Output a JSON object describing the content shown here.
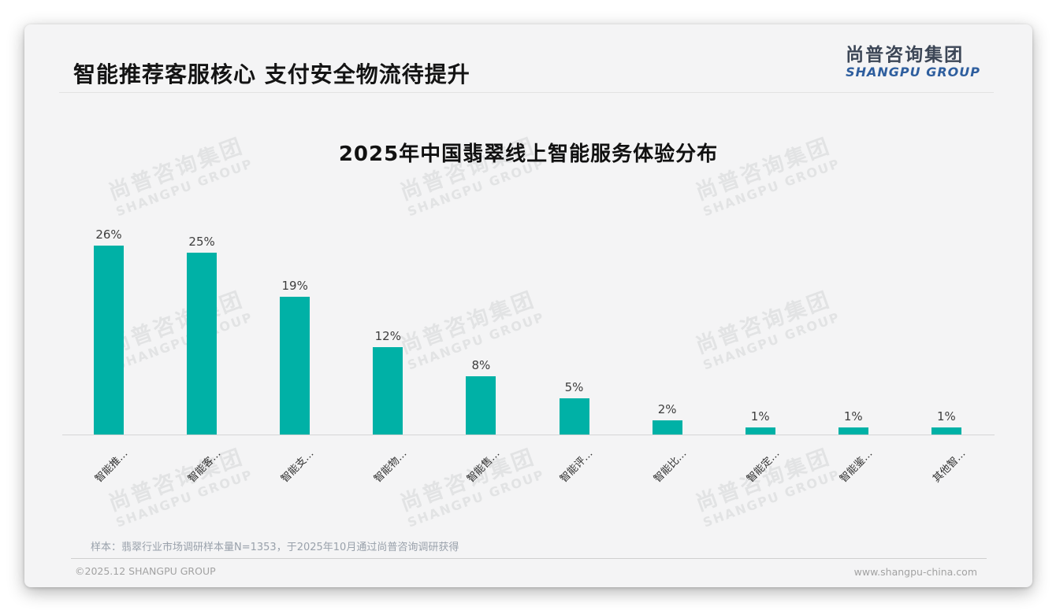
{
  "slide": {
    "title": "智能推荐客服核心 支付安全物流待提升",
    "logo": {
      "cn": "尚普咨询集团",
      "en": "SHANGPU GROUP",
      "cn_color": "#3c4656",
      "en_color": "#2e5e9e"
    },
    "watermark": {
      "cn": "尚普咨询集团",
      "en": "SHANGPU GROUP"
    },
    "footnote": "样本：翡翠行业市场调研样本量N=1353，于2025年10月通过尚普咨询调研获得",
    "footer": {
      "left": "©2025.12 SHANGPU GROUP",
      "right": "www.shangpu-china.com"
    }
  },
  "chart_data": {
    "type": "bar",
    "title": "2025年中国翡翠线上智能服务体验分布",
    "categories": [
      "智能推…",
      "智能客…",
      "智能支…",
      "智能物…",
      "智能售…",
      "智能评…",
      "智能比…",
      "智能定…",
      "智能鉴…",
      "其他智…"
    ],
    "values": [
      26,
      25,
      19,
      12,
      8,
      5,
      2,
      1,
      1,
      1
    ],
    "data_labels": [
      "26%",
      "25%",
      "19%",
      "12%",
      "8%",
      "5%",
      "2%",
      "1%",
      "1%",
      "1%"
    ],
    "xlabel": "",
    "ylabel": "",
    "ylim": [
      0,
      28
    ],
    "grid": false,
    "legend": false,
    "bar_color": "#00b1a6",
    "value_label_color": "#3d3d3d",
    "category_label_color": "#303030",
    "axis_line_color": "#d6d6d6"
  }
}
